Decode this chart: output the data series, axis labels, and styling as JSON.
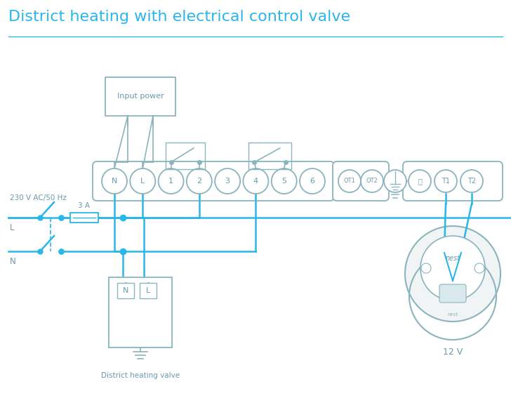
{
  "title": "District heating with electrical control valve",
  "title_color": "#29b6e8",
  "title_fontsize": 16,
  "bg_color": "#ffffff",
  "wire_color": "#29b6e8",
  "box_color": "#8ab4be",
  "text_color": "#6a9aaa",
  "terminal_labels": [
    "N",
    "L",
    "1",
    "2",
    "3",
    "4",
    "5",
    "6"
  ],
  "ot_labels": [
    "OT1",
    "OT2"
  ],
  "t_labels": [
    "⏚",
    "T1",
    "T2"
  ],
  "label_230v": "230 V AC/50 Hz",
  "label_L": "L",
  "label_N": "N",
  "label_3A": "3 A",
  "label_input_power": "Input power",
  "label_valve": "District heating valve",
  "label_12v": "12 V",
  "label_nest": "nest"
}
